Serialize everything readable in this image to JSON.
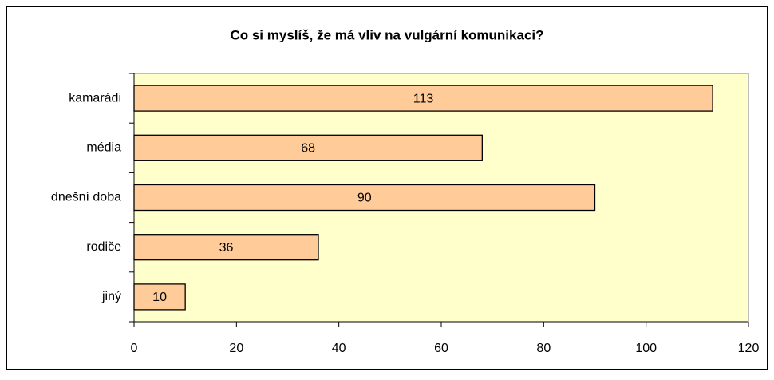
{
  "chart_data": {
    "type": "hbar",
    "title": "Co si myslíš, že má vliv na vulgární komunikaci?",
    "categories": [
      "kamarádi",
      "média",
      "dnešní doba",
      "rodiče",
      "jiný"
    ],
    "values": [
      113,
      68,
      90,
      36,
      10
    ],
    "color": "#ffcc99",
    "xlim": [
      0,
      120
    ],
    "xticks": [
      0,
      20,
      40,
      60,
      80,
      100,
      120
    ],
    "grid": false
  }
}
